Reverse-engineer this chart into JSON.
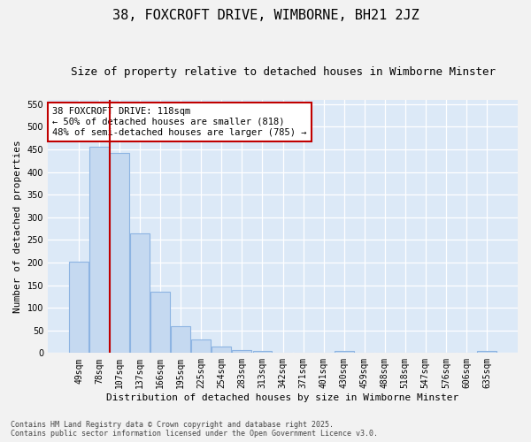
{
  "title": "38, FOXCROFT DRIVE, WIMBORNE, BH21 2JZ",
  "subtitle": "Size of property relative to detached houses in Wimborne Minster",
  "xlabel": "Distribution of detached houses by size in Wimborne Minster",
  "ylabel": "Number of detached properties",
  "categories": [
    "49sqm",
    "78sqm",
    "107sqm",
    "137sqm",
    "166sqm",
    "195sqm",
    "225sqm",
    "254sqm",
    "283sqm",
    "313sqm",
    "342sqm",
    "371sqm",
    "401sqm",
    "430sqm",
    "459sqm",
    "488sqm",
    "518sqm",
    "547sqm",
    "576sqm",
    "606sqm",
    "635sqm"
  ],
  "values": [
    201,
    456,
    443,
    265,
    135,
    60,
    30,
    14,
    7,
    4,
    1,
    1,
    1,
    5,
    1,
    0,
    0,
    0,
    0,
    0,
    4
  ],
  "bar_color": "#c5d9f0",
  "bar_edge_color": "#8db4e2",
  "fig_bg_color": "#f2f2f2",
  "plot_bg_color": "#dce9f7",
  "vline_color": "#c00000",
  "vline_x": 1.5,
  "annotation_text": "38 FOXCROFT DRIVE: 118sqm\n← 50% of detached houses are smaller (818)\n48% of semi-detached houses are larger (785) →",
  "annotation_box_color": "#ffffff",
  "annotation_box_edge": "#c00000",
  "footer": "Contains HM Land Registry data © Crown copyright and database right 2025.\nContains public sector information licensed under the Open Government Licence v3.0.",
  "ylim": [
    0,
    560
  ],
  "yticks": [
    0,
    50,
    100,
    150,
    200,
    250,
    300,
    350,
    400,
    450,
    500,
    550
  ],
  "title_fontsize": 11,
  "subtitle_fontsize": 9,
  "ylabel_fontsize": 8,
  "xlabel_fontsize": 8,
  "tick_fontsize": 7,
  "footer_fontsize": 6,
  "annot_fontsize": 7.5
}
